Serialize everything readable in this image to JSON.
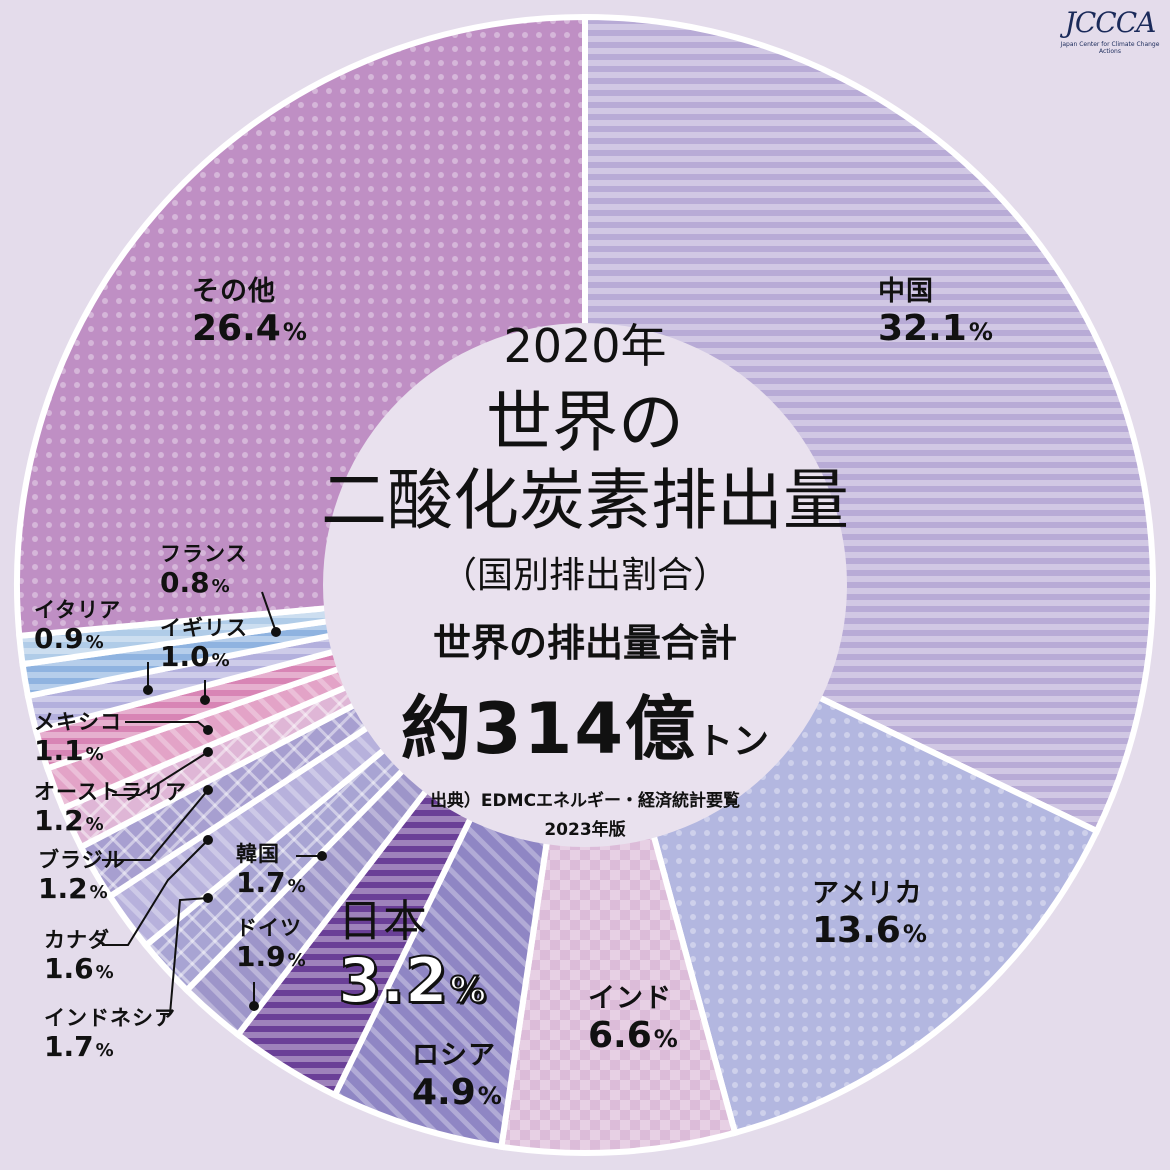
{
  "logo": {
    "mark": "JCCCA",
    "tagline": "Japan Center for Climate Change Actions"
  },
  "center": {
    "year": "2020年",
    "title_line1": "世界の",
    "title_line2": "二酸化炭素排出量",
    "subtitle": "（国別排出割合）",
    "total_label": "世界の排出量合計",
    "total_value": "約314億",
    "total_unit": "トン",
    "source": "出典）EDMCエネルギー・経済統計要覧",
    "source_year": "2023年版"
  },
  "chart_data": {
    "type": "pie",
    "title": "世界の二酸化炭素排出量",
    "unit": "%",
    "labels": [
      "中国",
      "アメリカ",
      "インド",
      "ロシア",
      "日本",
      "ドイツ",
      "韓国",
      "インドネシア",
      "カナダ",
      "ブラジル",
      "オーストラリア",
      "メキシコ",
      "イギリス",
      "イタリア",
      "フランス",
      "その他"
    ],
    "values": [
      32.1,
      13.6,
      6.6,
      4.9,
      3.2,
      1.9,
      1.7,
      1.7,
      1.6,
      1.2,
      1.2,
      1.1,
      1.0,
      0.9,
      0.8,
      26.4
    ],
    "value_text": [
      "32.1",
      "13.6",
      "6.6",
      "4.9",
      "3.2",
      "1.9",
      "1.7",
      "1.7",
      "1.6",
      "1.2",
      "1.2",
      "1.1",
      "1.0",
      "0.9",
      "0.8",
      "26.4"
    ],
    "percent_sign": "%",
    "colors": [
      "#b8abd6",
      "#b3b7e0",
      "#dcbcd9",
      "#8f86c4",
      "#6a3f97",
      "#9d95c9",
      "#a8a4d3",
      "#b7b1dc",
      "#a79fd0",
      "#dfb6d6",
      "#e3a3c7",
      "#d885b5",
      "#b3b0dd",
      "#8fb3e0",
      "#b0cce8",
      "#bf8fc4"
    ]
  }
}
